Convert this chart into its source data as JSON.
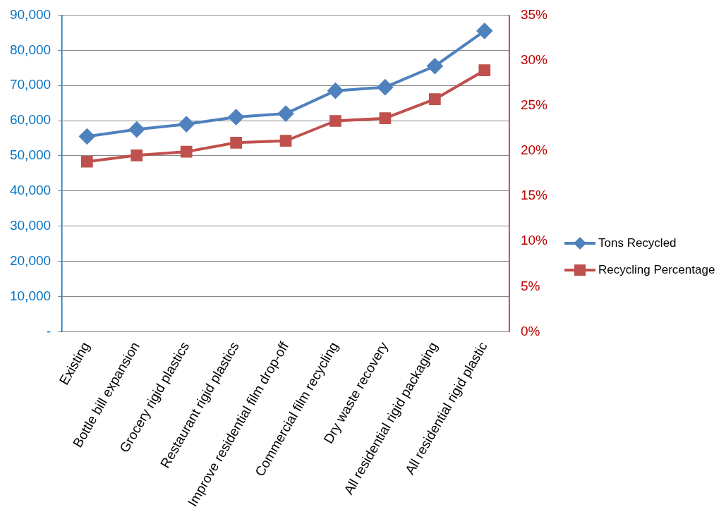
{
  "chart_data": {
    "type": "line",
    "categories": [
      "Existing",
      "Bottle bill expansion",
      "Grocery rigid plastics",
      "Restaurant rigid plastics",
      "Improve residential film drop-off",
      "Commercial film recycling",
      "Dry waste recovery",
      "All residential rigid packaging",
      "All residential rigid plastic"
    ],
    "series": [
      {
        "name": "Tons Recycled",
        "color": "#4f81bd",
        "marker": "diamond",
        "values": [
          55500,
          57500,
          59000,
          61000,
          62000,
          68500,
          69500,
          75500,
          85500
        ]
      },
      {
        "name": "Recycling Percentage",
        "color": "#c0504d",
        "marker": "square",
        "axis": "y2",
        "values": [
          18.8,
          19.5,
          19.9,
          20.9,
          21.1,
          23.3,
          23.6,
          25.7,
          28.9
        ]
      }
    ],
    "ylim": [
      0,
      90000
    ],
    "yticks": [
      {
        "value": 0,
        "label": "-"
      },
      {
        "value": 10000,
        "label": "10,000"
      },
      {
        "value": 20000,
        "label": "20,000"
      },
      {
        "value": 30000,
        "label": "30,000"
      },
      {
        "value": 40000,
        "label": "40,000"
      },
      {
        "value": 50000,
        "label": "50,000"
      },
      {
        "value": 60000,
        "label": "60,000"
      },
      {
        "value": 70000,
        "label": "70,000"
      },
      {
        "value": 80000,
        "label": "80,000"
      },
      {
        "value": 90000,
        "label": "90,000"
      }
    ],
    "y2lim": [
      0,
      35
    ],
    "y2ticks": [
      {
        "value": 0,
        "label": "0%"
      },
      {
        "value": 5,
        "label": "5%"
      },
      {
        "value": 10,
        "label": "10%"
      },
      {
        "value": 15,
        "label": "15%"
      },
      {
        "value": 20,
        "label": "20%"
      },
      {
        "value": 25,
        "label": "25%"
      },
      {
        "value": 30,
        "label": "30%"
      },
      {
        "value": 35,
        "label": "35%"
      }
    ],
    "grid": "y",
    "legend": "right",
    "line_style": "solid"
  }
}
